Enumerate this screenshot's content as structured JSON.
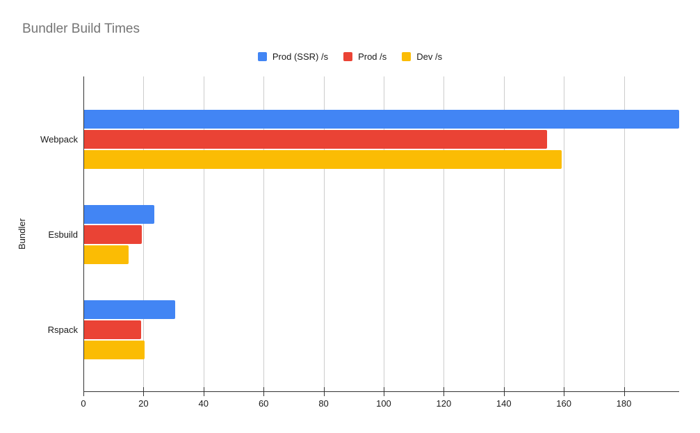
{
  "title": "Bundler Build Times",
  "chart_data": {
    "type": "bar",
    "orientation": "horizontal",
    "title": "Bundler Build Times",
    "xlabel": "",
    "ylabel": "Bundler",
    "categories": [
      "Webpack",
      "Esbuild",
      "Rspack"
    ],
    "series": [
      {
        "name": "Prod (SSR) /s",
        "color": "#4285F4",
        "values": [
          198.4,
          23.6,
          30.5
        ]
      },
      {
        "name": "Prod /s",
        "color": "#EA4335",
        "values": [
          154.3,
          19.5,
          19.2
        ]
      },
      {
        "name": "Dev /s",
        "color": "#FBBC04",
        "values": [
          159.3,
          15.1,
          20.3
        ]
      }
    ],
    "x_axis": {
      "min": 0,
      "max": 198.4,
      "ticks": [
        0,
        20,
        40,
        60,
        80,
        100,
        120,
        140,
        160,
        180
      ]
    },
    "grid": true,
    "legend_position": "top",
    "colors": {
      "title_text": "#757575",
      "axis_line": "#333333",
      "gridline": "#cccccc",
      "tick_text": "#1a1a1a",
      "label_text": "#1a1a1a",
      "background": "#ffffff"
    }
  }
}
